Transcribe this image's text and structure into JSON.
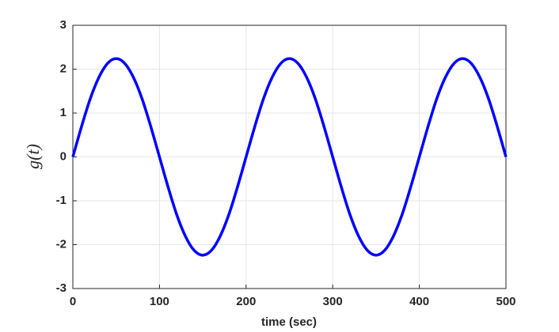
{
  "chart_data": {
    "type": "line",
    "xlabel": "time (sec)",
    "ylabel": "g(t)",
    "x": [
      0,
      10,
      20,
      30,
      40,
      50,
      60,
      70,
      80,
      90,
      100,
      110,
      120,
      130,
      140,
      150,
      160,
      170,
      180,
      190,
      200,
      210,
      220,
      230,
      240,
      250,
      260,
      270,
      280,
      290,
      300,
      310,
      320,
      330,
      340,
      350,
      360,
      370,
      380,
      390,
      400,
      410,
      420,
      430,
      440,
      450,
      460,
      470,
      480,
      490,
      500
    ],
    "series": [
      {
        "name": "g(t)",
        "color": "#0000ff",
        "values": [
          0,
          0.69,
          1.32,
          1.81,
          2.13,
          2.24,
          2.13,
          1.81,
          1.32,
          0.69,
          0,
          -0.69,
          -1.32,
          -1.81,
          -2.13,
          -2.24,
          -2.13,
          -1.81,
          -1.32,
          -0.69,
          0,
          0.69,
          1.32,
          1.81,
          2.13,
          2.24,
          2.13,
          1.81,
          1.32,
          0.69,
          0,
          -0.69,
          -1.32,
          -1.81,
          -2.13,
          -2.24,
          -2.13,
          -1.81,
          -1.32,
          -0.69,
          0,
          0.69,
          1.32,
          1.81,
          2.13,
          2.24,
          2.13,
          1.81,
          1.32,
          0.69,
          0
        ]
      }
    ],
    "xlim": [
      0,
      500
    ],
    "xticks": [
      0,
      100,
      200,
      300,
      400,
      500
    ],
    "ylim": [
      -3,
      3
    ],
    "yticks": [
      -3,
      -2,
      -1,
      0,
      1,
      2,
      3
    ],
    "grid": true
  }
}
